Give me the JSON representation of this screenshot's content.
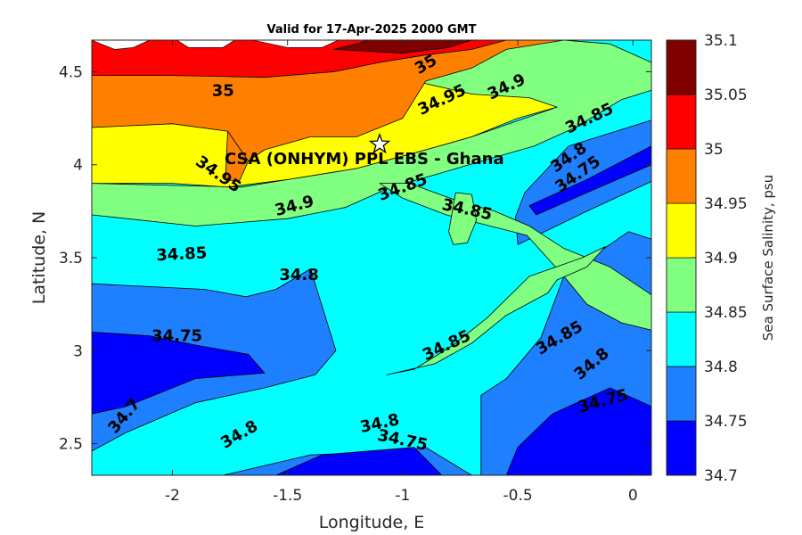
{
  "chart_data": {
    "type": "contour",
    "title": "Valid for 17-Apr-2025 2000 GMT",
    "xlabel": "Longitude, E",
    "ylabel": "Latitude, N",
    "colorbar_label": "Sea Surface Salinity, psu",
    "xlim": [
      -2.35,
      0.08
    ],
    "ylim": [
      2.33,
      4.67
    ],
    "xticks": [
      -2,
      -1.5,
      -1,
      -0.5,
      0
    ],
    "xtick_labels": [
      "-2",
      "-1.5",
      "-1",
      "-0.5",
      "0"
    ],
    "yticks": [
      2.5,
      3,
      3.5,
      4,
      4.5
    ],
    "ytick_labels": [
      "2.5",
      "3",
      "3.5",
      "4",
      "4.5"
    ],
    "levels": [
      34.7,
      34.75,
      34.8,
      34.85,
      34.9,
      34.95,
      35,
      35.05,
      35.1
    ],
    "level_labels": [
      "34.7",
      "34.75",
      "34.8",
      "34.85",
      "34.9",
      "34.95",
      "35",
      "35.05",
      "35.1"
    ],
    "band_colors": [
      "#0000ff",
      "#1e7fff",
      "#00ffff",
      "#80ff80",
      "#ffff00",
      "#ff8000",
      "#ff0000",
      "#800000"
    ],
    "site": {
      "label": "CSA (ONHYM) PPL EBS  - Ghana",
      "lon": -1.1,
      "lat": 4.11
    },
    "contour_labels": [
      {
        "text": "35",
        "lon": -1.78,
        "lat": 4.4,
        "rot": 0
      },
      {
        "text": "35",
        "lon": -0.9,
        "lat": 4.54,
        "rot": -30
      },
      {
        "text": "34.95",
        "lon": -0.83,
        "lat": 4.35,
        "rot": -25
      },
      {
        "text": "34.9",
        "lon": -0.55,
        "lat": 4.42,
        "rot": -25
      },
      {
        "text": "34.85",
        "lon": -0.19,
        "lat": 4.25,
        "rot": -25
      },
      {
        "text": "34.8",
        "lon": -0.28,
        "lat": 4.04,
        "rot": -35
      },
      {
        "text": "34.75",
        "lon": -0.24,
        "lat": 3.95,
        "rot": -35
      },
      {
        "text": "34.95",
        "lon": -1.8,
        "lat": 3.95,
        "rot": 35
      },
      {
        "text": "34.9",
        "lon": -1.47,
        "lat": 3.78,
        "rot": -15
      },
      {
        "text": "34.85",
        "lon": -1.0,
        "lat": 3.88,
        "rot": -20
      },
      {
        "text": "34.85",
        "lon": -0.72,
        "lat": 3.76,
        "rot": 12
      },
      {
        "text": "34.85",
        "lon": -1.96,
        "lat": 3.52,
        "rot": -3
      },
      {
        "text": "34.8",
        "lon": -1.45,
        "lat": 3.41,
        "rot": 0
      },
      {
        "text": "34.75",
        "lon": -1.98,
        "lat": 3.08,
        "rot": 0
      },
      {
        "text": "34.85",
        "lon": -0.81,
        "lat": 3.03,
        "rot": -25
      },
      {
        "text": "34.85",
        "lon": -0.32,
        "lat": 3.07,
        "rot": -30
      },
      {
        "text": "34.8",
        "lon": -0.18,
        "lat": 2.93,
        "rot": -40
      },
      {
        "text": "34.75",
        "lon": -0.13,
        "lat": 2.73,
        "rot": -15
      },
      {
        "text": "34.7",
        "lon": -2.21,
        "lat": 2.65,
        "rot": -50
      },
      {
        "text": "34.8",
        "lon": -1.71,
        "lat": 2.55,
        "rot": -30
      },
      {
        "text": "34.8",
        "lon": -1.1,
        "lat": 2.61,
        "rot": -12
      },
      {
        "text": "34.75",
        "lon": -1.0,
        "lat": 2.52,
        "rot": 12
      }
    ],
    "regions": [
      {
        "level": 1,
        "points": [
          [
            -2.35,
            3.36
          ],
          [
            -1.86,
            3.33
          ],
          [
            -1.68,
            3.29
          ],
          [
            -1.55,
            3.33
          ],
          [
            -1.4,
            3.44
          ],
          [
            -1.34,
            3.2
          ],
          [
            -1.29,
            3.0
          ],
          [
            -1.38,
            2.87
          ],
          [
            -1.6,
            2.8
          ],
          [
            -1.9,
            2.72
          ],
          [
            -2.2,
            2.56
          ],
          [
            -2.35,
            2.46
          ]
        ]
      },
      {
        "level": 1,
        "points": [
          [
            -0.02,
            3.64
          ],
          [
            -0.3,
            3.4
          ],
          [
            -0.4,
            3.07
          ],
          [
            -0.55,
            2.85
          ],
          [
            -0.66,
            2.76
          ],
          [
            -0.66,
            2.33
          ],
          [
            0.08,
            2.33
          ],
          [
            0.08,
            3.6
          ]
        ]
      },
      {
        "level": 1,
        "points": [
          [
            -1.78,
            2.33
          ],
          [
            -1.4,
            2.44
          ],
          [
            -1.0,
            2.46
          ],
          [
            -0.9,
            2.48
          ],
          [
            -0.7,
            2.33
          ]
        ]
      },
      {
        "level": 1,
        "points": [
          [
            0.08,
            4.24
          ],
          [
            -0.28,
            4.1
          ],
          [
            -0.47,
            3.85
          ],
          [
            -0.51,
            3.72
          ],
          [
            -0.5,
            3.57
          ],
          [
            -0.2,
            3.75
          ],
          [
            0.08,
            3.91
          ]
        ]
      },
      {
        "level": 0,
        "points": [
          [
            -2.35,
            3.1
          ],
          [
            -2.1,
            3.08
          ],
          [
            -1.9,
            3.03
          ],
          [
            -1.67,
            2.98
          ],
          [
            -1.6,
            2.88
          ],
          [
            -1.9,
            2.85
          ],
          [
            -2.2,
            2.7
          ],
          [
            -2.35,
            2.66
          ]
        ]
      },
      {
        "level": 0,
        "points": [
          [
            -0.55,
            2.33
          ],
          [
            -0.5,
            2.48
          ],
          [
            -0.35,
            2.66
          ],
          [
            -0.1,
            2.8
          ],
          [
            0.08,
            2.7
          ],
          [
            0.08,
            2.33
          ]
        ]
      },
      {
        "level": 0,
        "points": [
          [
            -1.55,
            2.33
          ],
          [
            -1.35,
            2.44
          ],
          [
            -1.05,
            2.47
          ],
          [
            -0.95,
            2.48
          ],
          [
            -0.83,
            2.33
          ]
        ]
      },
      {
        "level": 0,
        "points": [
          [
            0.08,
            4.1
          ],
          [
            -0.2,
            3.92
          ],
          [
            -0.45,
            3.78
          ],
          [
            -0.42,
            3.73
          ],
          [
            -0.2,
            3.85
          ],
          [
            0.08,
            4.0
          ]
        ]
      },
      {
        "level": 3,
        "points": [
          [
            -2.35,
            3.73
          ],
          [
            -1.9,
            3.67
          ],
          [
            -1.5,
            3.71
          ],
          [
            -1.25,
            3.77
          ],
          [
            -1.05,
            3.88
          ],
          [
            -0.85,
            3.95
          ],
          [
            -0.6,
            4.04
          ],
          [
            -0.43,
            4.1
          ],
          [
            -0.25,
            4.2
          ],
          [
            -0.05,
            4.35
          ],
          [
            0.08,
            4.4
          ],
          [
            0.08,
            4.55
          ],
          [
            -0.1,
            4.65
          ],
          [
            -0.3,
            4.67
          ],
          [
            -1.25,
            4.67
          ],
          [
            -1.1,
            4.6
          ],
          [
            -0.95,
            4.45
          ],
          [
            -0.6,
            4.35
          ],
          [
            -0.45,
            4.28
          ],
          [
            -0.33,
            4.31
          ],
          [
            -0.7,
            4.15
          ],
          [
            -0.9,
            4.08
          ],
          [
            -1.2,
            3.98
          ],
          [
            -1.5,
            3.92
          ],
          [
            -1.7,
            3.88
          ],
          [
            -2.35,
            3.9
          ]
        ]
      },
      {
        "level": 3,
        "points": [
          [
            -0.46,
            3.62
          ],
          [
            -0.3,
            3.4
          ],
          [
            -0.2,
            3.25
          ],
          [
            -0.05,
            3.15
          ],
          [
            0.08,
            3.11
          ],
          [
            0.08,
            3.3
          ],
          [
            -0.1,
            3.45
          ],
          [
            -0.3,
            3.55
          ],
          [
            -0.45,
            3.67
          ],
          [
            -0.6,
            3.75
          ],
          [
            -0.75,
            3.8
          ],
          [
            -0.97,
            3.9
          ],
          [
            -1.1,
            3.9
          ],
          [
            -1.0,
            3.82
          ],
          [
            -0.81,
            3.73
          ],
          [
            -0.65,
            3.68
          ]
        ]
      },
      {
        "level": 3,
        "points": [
          [
            -1.07,
            2.87
          ],
          [
            -0.86,
            2.93
          ],
          [
            -0.7,
            3.04
          ],
          [
            -0.55,
            3.19
          ],
          [
            -0.37,
            3.31
          ],
          [
            -0.33,
            3.38
          ],
          [
            -0.2,
            3.45
          ],
          [
            -0.12,
            3.56
          ],
          [
            -0.22,
            3.5
          ],
          [
            -0.45,
            3.4
          ],
          [
            -0.63,
            3.18
          ],
          [
            -0.78,
            3.03
          ],
          [
            -0.95,
            2.9
          ]
        ]
      },
      {
        "level": 3,
        "points": [
          [
            -0.8,
            3.64
          ],
          [
            -0.77,
            3.85
          ],
          [
            -0.7,
            3.84
          ],
          [
            -0.68,
            3.7
          ],
          [
            -0.72,
            3.58
          ],
          [
            -0.78,
            3.57
          ]
        ]
      },
      {
        "level": 4,
        "points": [
          [
            -2.35,
            3.9
          ],
          [
            -2.0,
            3.9
          ],
          [
            -1.76,
            3.88
          ],
          [
            -1.5,
            3.92
          ],
          [
            -1.2,
            3.98
          ],
          [
            -0.9,
            4.08
          ],
          [
            -0.7,
            4.15
          ],
          [
            -0.5,
            4.25
          ],
          [
            -0.33,
            4.31
          ],
          [
            -0.45,
            4.36
          ],
          [
            -0.7,
            4.38
          ],
          [
            -0.95,
            4.45
          ],
          [
            -1.1,
            4.6
          ],
          [
            -1.25,
            4.67
          ],
          [
            -2.35,
            4.67
          ]
        ]
      },
      {
        "level": 5,
        "points": [
          [
            -2.35,
            4.2
          ],
          [
            -2.0,
            4.22
          ],
          [
            -1.76,
            4.18
          ],
          [
            -1.67,
            4.02
          ],
          [
            -1.6,
            4.08
          ],
          [
            -1.4,
            4.15
          ],
          [
            -1.2,
            4.15
          ],
          [
            -1.0,
            4.25
          ],
          [
            -0.9,
            4.45
          ],
          [
            -0.7,
            4.52
          ],
          [
            -0.55,
            4.62
          ],
          [
            -0.3,
            4.67
          ],
          [
            -2.35,
            4.67
          ]
        ]
      },
      {
        "level": 5,
        "points": [
          [
            -1.76,
            4.18
          ],
          [
            -1.77,
            3.92
          ],
          [
            -1.71,
            3.91
          ],
          [
            -1.67,
            4.02
          ]
        ]
      },
      {
        "level": 6,
        "points": [
          [
            -2.35,
            4.48
          ],
          [
            -2.0,
            4.48
          ],
          [
            -1.6,
            4.47
          ],
          [
            -1.3,
            4.5
          ],
          [
            -1.1,
            4.55
          ],
          [
            -0.9,
            4.59
          ],
          [
            -0.7,
            4.62
          ],
          [
            -0.55,
            4.67
          ],
          [
            -2.35,
            4.67
          ]
        ]
      },
      {
        "level": 7,
        "points": [
          [
            -1.3,
            4.62
          ],
          [
            -1.2,
            4.65
          ],
          [
            -1.15,
            4.67
          ],
          [
            -0.7,
            4.67
          ],
          [
            -0.8,
            4.63
          ],
          [
            -1.0,
            4.6
          ]
        ]
      }
    ],
    "white_gaps": [
      [
        [
          -2.35,
          4.67
        ],
        [
          -2.25,
          4.62
        ],
        [
          -2.17,
          4.63
        ],
        [
          -2.1,
          4.67
        ]
      ],
      [
        [
          -1.98,
          4.67
        ],
        [
          -1.93,
          4.63
        ],
        [
          -1.78,
          4.63
        ],
        [
          -1.73,
          4.67
        ]
      ],
      [
        [
          -1.65,
          4.67
        ],
        [
          -1.5,
          4.63
        ],
        [
          -1.35,
          4.63
        ],
        [
          -1.28,
          4.67
        ]
      ]
    ]
  }
}
